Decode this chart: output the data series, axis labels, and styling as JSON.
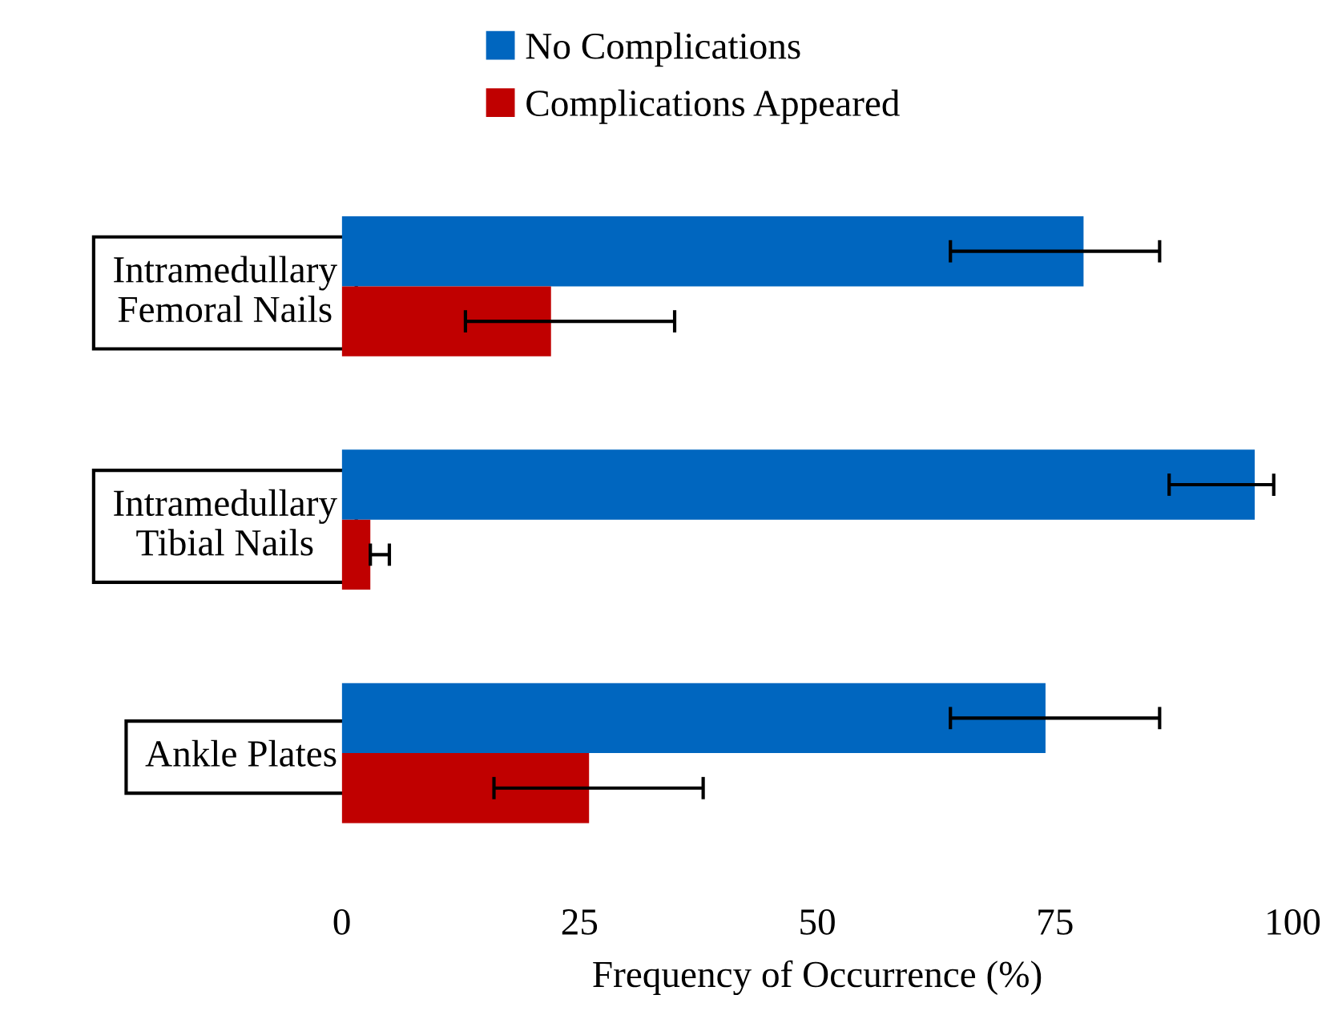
{
  "chart_data": {
    "type": "bar",
    "orientation": "horizontal",
    "xlabel": "Frequency of Occurrence (%)",
    "categories": [
      "Intramedullary\nFemoral Nails",
      "Intramedullary\nTibial Nails",
      "Ankle Plates"
    ],
    "series": [
      {
        "name": "No Complications",
        "color": "#0066bf",
        "values": [
          78,
          96,
          74
        ],
        "errors": [
          [
            64,
            86
          ],
          [
            87,
            98
          ],
          [
            64,
            86
          ]
        ]
      },
      {
        "name": "Complications Appeared",
        "color": "#c00000",
        "values": [
          22,
          3,
          26
        ],
        "errors": [
          [
            13,
            35
          ],
          [
            3,
            5
          ],
          [
            16,
            38
          ]
        ]
      }
    ],
    "xlim": [
      0,
      100
    ],
    "xticks": [
      0,
      25,
      50,
      75,
      100
    ],
    "grid": false,
    "legend": "top"
  }
}
